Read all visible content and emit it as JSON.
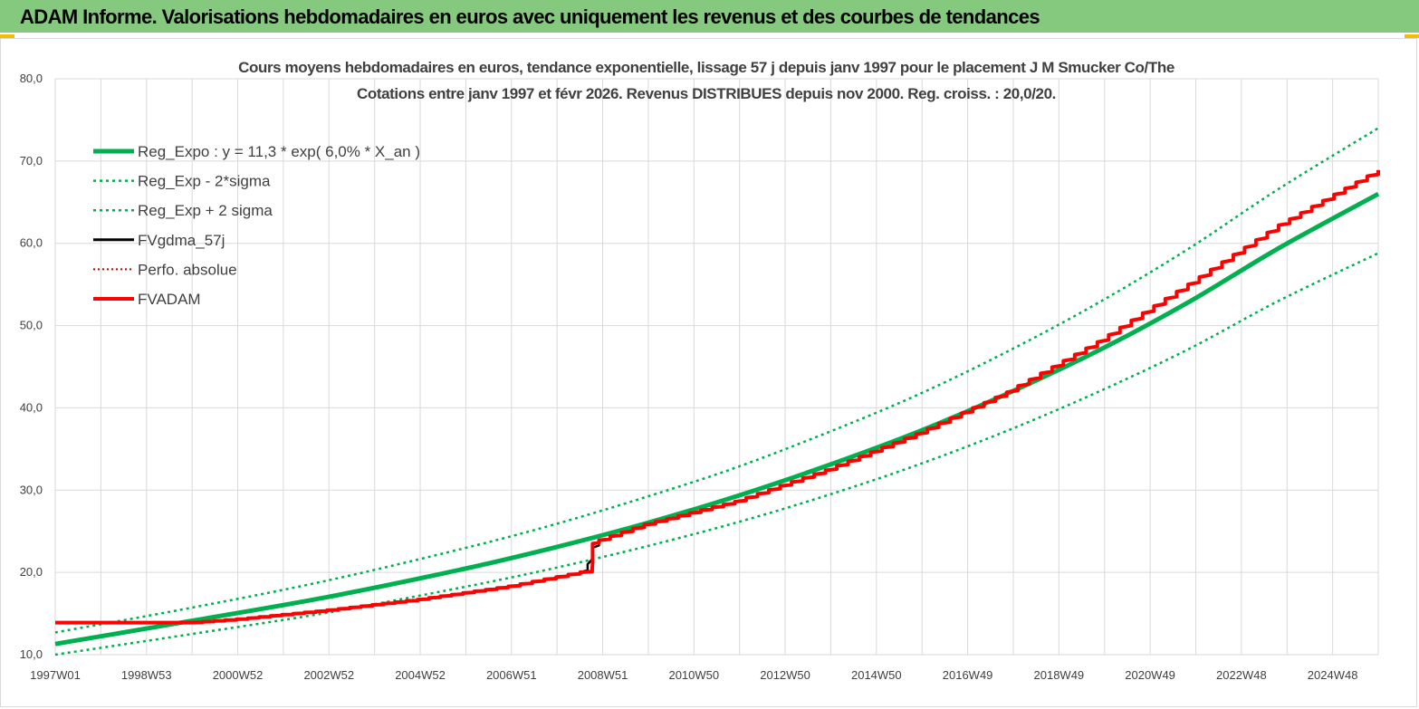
{
  "banner": {
    "title": "ADAM Informe. Valorisations hebdomadaires en euros avec uniquement les revenus et des courbes de tendances"
  },
  "colors": {
    "banner_bg": "#85c97e",
    "trend": "#00b050",
    "fvgdma": "#000000",
    "fvadam": "#ff0000",
    "perfo": "#c00000"
  },
  "chart_data": {
    "type": "line",
    "title": "Cours moyens hebdomadaires en euros, tendance exponentielle, lissage 57 j depuis janv 1997 pour le placement J M Smucker Co/The",
    "subtitle": "Cotations entre janv 1997 et févr 2026. Revenus DISTRIBUES depuis nov 2000. Reg. croiss. : 20,0/20.",
    "ylim": [
      10,
      80
    ],
    "xlim": [
      1997.0,
      2026.2
    ],
    "y_ticks": [
      "10,0",
      "20,0",
      "30,0",
      "40,0",
      "50,0",
      "60,0",
      "70,0",
      "80,0"
    ],
    "x_ticks": [
      "1997W01",
      "1998W53",
      "2000W52",
      "2002W52",
      "2004W52",
      "2006W51",
      "2008W51",
      "2010W50",
      "2012W50",
      "2014W50",
      "2016W49",
      "2018W49",
      "2020W49",
      "2022W48",
      "2024W48"
    ],
    "legend": [
      "Reg_Expo : y = 11,3 * exp( 6,0% *  X_an )",
      "Reg_Exp - 2*sigma",
      "Reg_Exp + 2 sigma",
      "FVgdma_57j",
      "Perfo. absolue",
      "FVADAM"
    ],
    "grid": true,
    "legend_position": "top-left",
    "series": [
      {
        "name": "Reg_Expo : y = 11,3 * exp( 6,0% *  X_an )",
        "x": [
          1997.0,
          2000.0,
          2003.0,
          2006.0,
          2008.0,
          2010.0,
          2012.0,
          2014.0,
          2016.0,
          2018.0,
          2020.0,
          2022.0,
          2024.0,
          2026.2
        ],
        "values": [
          11.3,
          14.1,
          17.0,
          20.4,
          23.0,
          25.9,
          29.2,
          32.9,
          37.0,
          41.7,
          46.9,
          52.8,
          59.4,
          66.0
        ]
      },
      {
        "name": "Reg_Exp - 2*sigma",
        "x": [
          1997.0,
          2000.0,
          2003.0,
          2006.0,
          2008.0,
          2010.0,
          2012.0,
          2014.0,
          2016.0,
          2018.0,
          2020.0,
          2022.0,
          2024.0,
          2026.2
        ],
        "values": [
          10.0,
          12.5,
          15.1,
          18.2,
          20.5,
          23.1,
          26.0,
          29.3,
          33.0,
          37.2,
          41.9,
          47.1,
          53.0,
          58.8
        ]
      },
      {
        "name": "Reg_Exp + 2 sigma",
        "x": [
          1997.0,
          2000.0,
          2003.0,
          2006.0,
          2008.0,
          2010.0,
          2012.0,
          2014.0,
          2016.0,
          2018.0,
          2020.0,
          2022.0,
          2024.0,
          2026.2
        ],
        "values": [
          12.7,
          15.7,
          19.0,
          22.9,
          25.8,
          29.1,
          32.7,
          36.9,
          41.5,
          46.8,
          52.7,
          59.3,
          66.6,
          74.0
        ]
      },
      {
        "name": "FVgdma_57j",
        "x": [
          1997.0,
          2000.0,
          2001.0,
          2003.0,
          2005.0,
          2007.0,
          2008.6,
          2008.75,
          2008.85,
          2009.0,
          2010.0,
          2012.0,
          2014.0,
          2016.0,
          2018.0,
          2020.0,
          2022.0,
          2024.0,
          2026.2
        ],
        "values": [
          13.9,
          13.9,
          14.3,
          15.4,
          16.7,
          18.3,
          20.0,
          21.0,
          23.0,
          23.9,
          25.8,
          28.6,
          32.4,
          36.8,
          41.9,
          48.0,
          55.0,
          62.2,
          68.9
        ]
      },
      {
        "name": "FVADAM",
        "x": [
          1997.0,
          2000.0,
          2001.0,
          2003.0,
          2005.0,
          2007.0,
          2008.85,
          2008.86,
          2009.0,
          2010.0,
          2012.0,
          2014.0,
          2016.0,
          2018.0,
          2020.0,
          2022.0,
          2024.0,
          2026.2
        ],
        "values": [
          13.9,
          13.9,
          14.3,
          15.4,
          16.7,
          18.3,
          20.3,
          23.5,
          23.9,
          25.8,
          28.6,
          32.4,
          36.8,
          41.9,
          48.0,
          55.0,
          62.2,
          68.9
        ]
      }
    ]
  }
}
